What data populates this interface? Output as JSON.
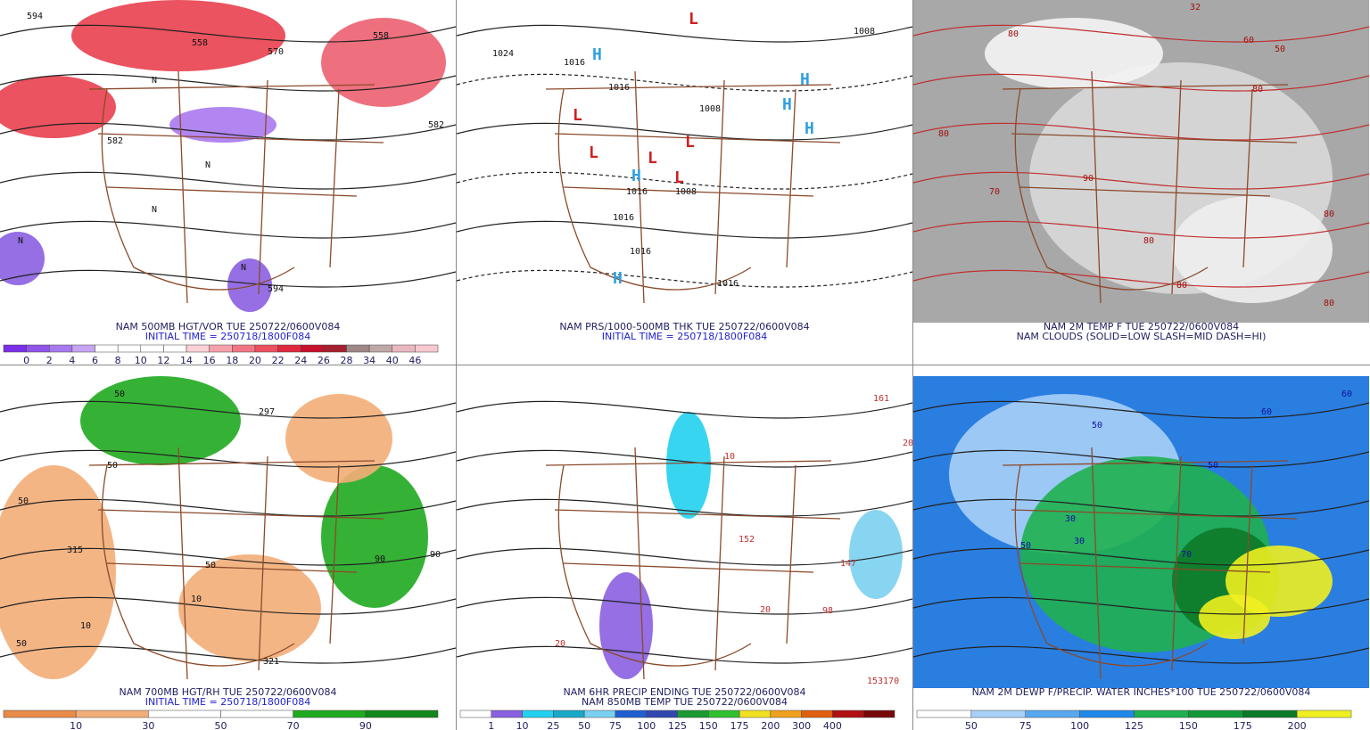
{
  "panels": [
    {
      "caption": [
        {
          "text": "NAM 500MB HGT/VOR TUE 250722/0600V084",
          "color": "#202060"
        },
        {
          "text": "INITIAL TIME = 250718/1800F084",
          "color": "#1f1fd0"
        }
      ],
      "map_labels": [
        "594",
        "558",
        "570",
        "558",
        "582",
        "582",
        "594",
        "N",
        "N",
        "N",
        "N",
        "N"
      ],
      "colorbar": {
        "colors": [
          "#7b2fe8",
          "#9055ea",
          "#a879ee",
          "#c6a5f2",
          "#ffffff",
          "#ffffff",
          "#ffffff",
          "#ffffff",
          "#fbd0d6",
          "#f6a0ac",
          "#f17683",
          "#ec4f5e",
          "#e0283c",
          "#c8102c",
          "#a52030",
          "#a08888",
          "#c0a8a8",
          "#e8b8c0",
          "#f8c8d0"
        ],
        "labels": [
          "0",
          "2",
          "4",
          "6",
          "8",
          "10",
          "12",
          "14",
          "16",
          "18",
          "20",
          "22",
          "24",
          "26",
          "28",
          "34",
          "40",
          "46"
        ]
      }
    },
    {
      "caption": [
        {
          "text": "NAM PRS/1000-500MB THK TUE 250722/0600V084",
          "color": "#202060"
        },
        {
          "text": "INITIAL TIME = 250718/1800F084",
          "color": "#1f1fd0"
        }
      ],
      "map_labels": [
        "1024",
        "1016",
        "1016",
        "1008",
        "1008",
        "1016",
        "1016",
        "1016",
        "1016",
        "1008",
        "H",
        "H",
        "H",
        "H",
        "H",
        "H",
        "L",
        "L",
        "L",
        "L",
        "L",
        "L"
      ]
    },
    {
      "caption": [
        {
          "text": "NAM 2M TEMP F TUE 250722/0600V084",
          "color": "#202060"
        },
        {
          "text": "NAM CLOUDS (SOLID=LOW SLASH=MID DASH=HI)",
          "color": "#202060"
        }
      ],
      "map_labels": [
        "80",
        "80",
        "70",
        "80",
        "80",
        "80",
        "80",
        "80",
        "90",
        "60",
        "50",
        "32"
      ]
    },
    {
      "caption": [
        {
          "text": "NAM 700MB HGT/RH TUE 250722/0600V084",
          "color": "#202060"
        },
        {
          "text": "INITIAL TIME = 250718/1800F084",
          "color": "#1f1fd0"
        }
      ],
      "map_labels": [
        "50",
        "50",
        "50",
        "50",
        "10",
        "10",
        "90",
        "90",
        "50",
        "315",
        "321",
        "297"
      ],
      "colorbar": {
        "colors": [
          "#e88a48",
          "#f3ad78",
          "#ffffff",
          "#ffffff",
          "#1faa1f",
          "#11881a"
        ],
        "labels": [
          "10",
          "30",
          "50",
          "70",
          "90"
        ]
      }
    },
    {
      "caption": [
        {
          "text": "NAM 6HR PRECIP ENDING TUE 250722/0600V084",
          "color": "#202060"
        },
        {
          "text": "NAM 850MB TEMP TUE 250722/0600V084",
          "color": "#202060"
        }
      ],
      "map_labels": [
        "20",
        "20",
        "20",
        "10",
        "152",
        "147",
        "98",
        "153170",
        "161"
      ],
      "colorbar": {
        "colors": [
          "#ffffff",
          "#8a5fe0",
          "#22d0f0",
          "#19a8c8",
          "#7ad0f0",
          "#1f5fd0",
          "#3048b0",
          "#1a9a30",
          "#30c030",
          "#f0e020",
          "#f0a020",
          "#e06010",
          "#b01010",
          "#780808"
        ],
        "labels": [
          "1",
          "10",
          "25",
          "50",
          "75",
          "100",
          "125",
          "150",
          "175",
          "200",
          "300",
          "400"
        ]
      }
    },
    {
      "caption": [
        {
          "text": "NAM 2M DEWP F/PRECIP. WATER INCHES*100 TUE 250722/0600V084",
          "color": "#202060"
        }
      ],
      "map_labels": [
        "50",
        "50",
        "60",
        "60",
        "70",
        "30",
        "30",
        "50"
      ],
      "colorbar": {
        "colors": [
          "#ffffff",
          "#a8d0f8",
          "#58a8f0",
          "#2088e8",
          "#1fb050",
          "#139838",
          "#0d7a28",
          "#f0f020"
        ],
        "labels": [
          "50",
          "75",
          "100",
          "125",
          "150",
          "175",
          "200"
        ]
      }
    }
  ]
}
